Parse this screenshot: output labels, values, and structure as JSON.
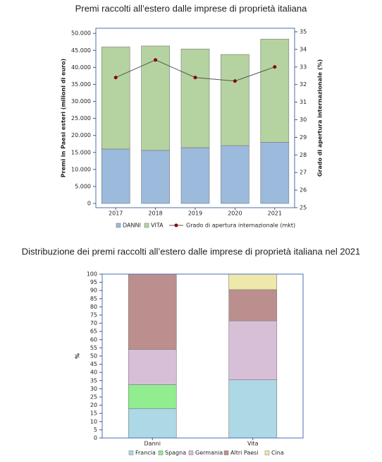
{
  "chart_data": [
    {
      "type": "bar",
      "stacked": true,
      "title": "Premi raccolti all’estero dalle imprese di proprietà italiana",
      "y_label": "Premi in Paesi esteri (milioni di euro)",
      "y2_label": "Grado di apertura internazionale (%)",
      "categories": [
        "2017",
        "2018",
        "2019",
        "2020",
        "2021"
      ],
      "series": [
        {
          "name": "DANNI",
          "color": "#9bbadc",
          "values": [
            16000,
            15600,
            16400,
            17000,
            18000
          ]
        },
        {
          "name": "VITA",
          "color": "#b5d3a0",
          "values": [
            30000,
            30700,
            29000,
            26800,
            30300
          ]
        },
        {
          "name": "Grado di apertura internazionale (mkt)",
          "color": "#8b0000",
          "type": "line",
          "axis": "y2",
          "values": [
            32.4,
            33.4,
            32.4,
            32.2,
            33.0
          ]
        }
      ],
      "ylim": [
        -1250,
        51500
      ],
      "yticks": [
        0,
        {
          "value": 5000,
          "label": "5.000"
        },
        {
          "value": 10000,
          "label": "10.000"
        },
        {
          "value": 15000,
          "label": "15.000"
        },
        {
          "value": 20000,
          "label": "20.000"
        },
        {
          "value": 25000,
          "label": "25.000"
        },
        {
          "value": 30000,
          "label": "30.000"
        },
        {
          "value": 35000,
          "label": "35.000"
        },
        {
          "value": 40000,
          "label": "40.000"
        },
        {
          "value": 45000,
          "label": "45.000"
        },
        {
          "value": 50000,
          "label": "50.000"
        }
      ],
      "y2lim": [
        25,
        35.2
      ],
      "y2ticks": [
        25,
        26,
        27,
        28,
        29,
        30,
        31,
        32,
        33,
        34,
        35
      ]
    },
    {
      "type": "bar",
      "stacked": true,
      "title": "Distribuzione dei premi raccolti all’estero dalle imprese di proprietà italiana nel 2021",
      "y_label": "%",
      "categories": [
        "Danni",
        "Vita"
      ],
      "series": [
        {
          "name": "Francia",
          "color": "#add8e6",
          "values": [
            18,
            35.5
          ]
        },
        {
          "name": "Spagna",
          "color": "#90ee90",
          "values": [
            14.5,
            0
          ]
        },
        {
          "name": "Germania",
          "color": "#d8bfd8",
          "values": [
            21.5,
            36
          ]
        },
        {
          "name": "Altri Paesi",
          "color": "#bc8f8f",
          "values": [
            46,
            19
          ]
        },
        {
          "name": "Cina",
          "color": "#eee8aa",
          "values": [
            0,
            9.5
          ]
        }
      ],
      "ylim": [
        0,
        100
      ],
      "yticks": [
        0,
        5,
        10,
        15,
        20,
        25,
        30,
        35,
        40,
        45,
        50,
        55,
        60,
        65,
        70,
        75,
        80,
        85,
        90,
        95,
        100
      ]
    }
  ]
}
